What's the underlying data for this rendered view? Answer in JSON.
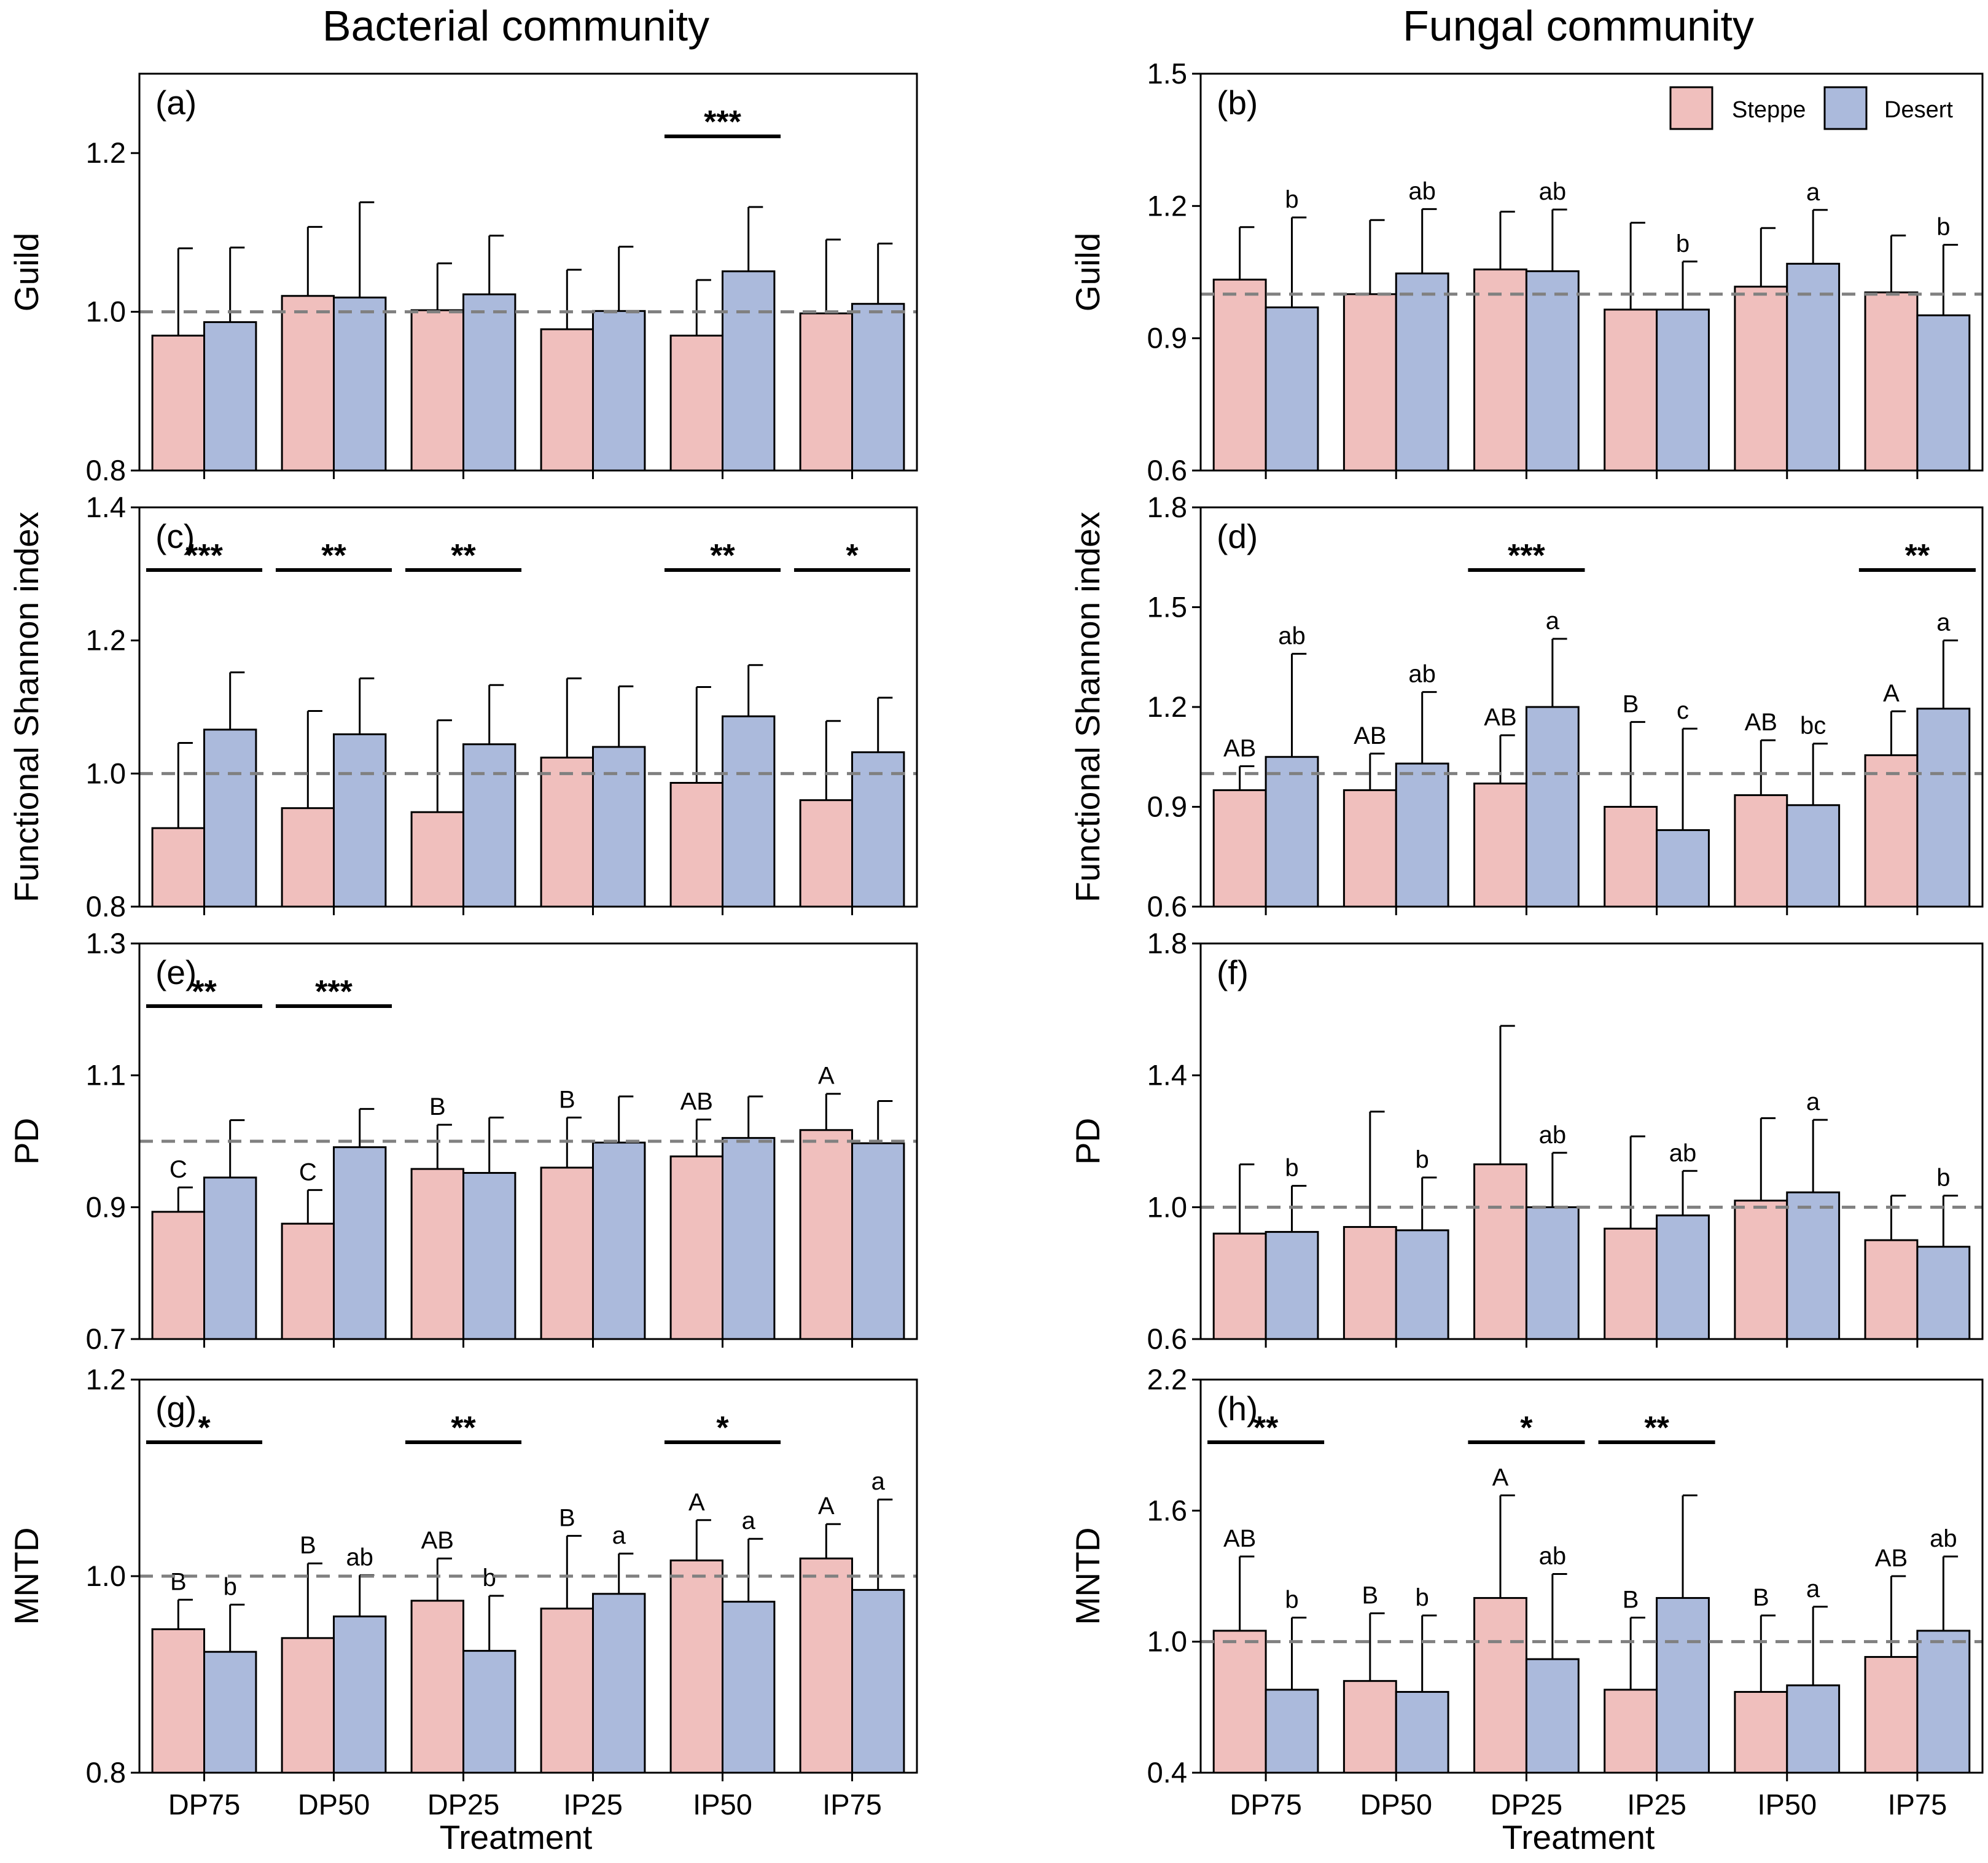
{
  "colors": {
    "steppe": "#f0bfbd",
    "desert": "#abbadc",
    "ref_line": "#808080"
  },
  "col_titles": {
    "left": "Bacterial community",
    "right": "Fungal community"
  },
  "legend": {
    "steppe": "Steppe",
    "desert": "Desert"
  },
  "x_title": "Treatment",
  "chart_data": [
    {
      "id": "a",
      "type": "bar",
      "label": "(a)",
      "ylabel": "Guild",
      "categories": [
        "DP75",
        "DP50",
        "DP25",
        "IP25",
        "IP50",
        "IP75"
      ],
      "ylim": [
        0.8,
        1.3
      ],
      "yticks": [
        0.8,
        1.0,
        1.2
      ],
      "ytick_labels": [
        "0.8",
        "1.0",
        "1.2"
      ],
      "series": [
        {
          "name": "Steppe",
          "values": [
            0.97,
            1.02,
            1.002,
            0.978,
            0.97,
            0.998
          ],
          "err": [
            1.08,
            1.107,
            1.061,
            1.053,
            1.04,
            1.091
          ],
          "letters": [
            "",
            "",
            "",
            "",
            "",
            ""
          ]
        },
        {
          "name": "Desert",
          "values": [
            0.987,
            1.018,
            1.022,
            1.001,
            1.051,
            1.01
          ],
          "err": [
            1.081,
            1.138,
            1.096,
            1.082,
            1.132,
            1.086
          ],
          "letters": [
            "",
            "",
            "",
            "",
            "",
            ""
          ]
        }
      ],
      "sig": [
        {
          "index": 4,
          "label": "***"
        }
      ]
    },
    {
      "id": "b",
      "type": "bar",
      "label": "(b)",
      "ylabel": "Guild",
      "categories": [
        "DP75",
        "DP50",
        "DP25",
        "IP25",
        "IP50",
        "IP75"
      ],
      "ylim": [
        0.6,
        1.5
      ],
      "yticks": [
        0.6,
        0.9,
        1.2,
        1.5
      ],
      "ytick_labels": [
        "0.6",
        "0.9",
        "1.2",
        "1.5"
      ],
      "series": [
        {
          "name": "Steppe",
          "values": [
            1.033,
            1.0,
            1.056,
            0.965,
            1.017,
            1.004
          ],
          "err": [
            1.152,
            1.168,
            1.187,
            1.162,
            1.15,
            1.133
          ],
          "letters": [
            "",
            "",
            "",
            "",
            "",
            ""
          ]
        },
        {
          "name": "Desert",
          "values": [
            0.97,
            1.047,
            1.052,
            0.965,
            1.069,
            0.952
          ],
          "err": [
            1.174,
            1.193,
            1.192,
            1.074,
            1.191,
            1.112
          ],
          "letters": [
            "b",
            "ab",
            "ab",
            "b",
            "a",
            "b"
          ]
        }
      ],
      "sig": [],
      "show_legend": true
    },
    {
      "id": "c",
      "type": "bar",
      "label": "(c)",
      "ylabel": "Functional Shannon index",
      "categories": [
        "DP75",
        "DP50",
        "DP25",
        "IP25",
        "IP50",
        "IP75"
      ],
      "ylim": [
        0.8,
        1.4
      ],
      "yticks": [
        0.8,
        1.0,
        1.2,
        1.4
      ],
      "ytick_labels": [
        "0.8",
        "1.0",
        "1.2",
        "1.4"
      ],
      "series": [
        {
          "name": "Steppe",
          "values": [
            0.918,
            0.948,
            0.942,
            1.024,
            0.986,
            0.96
          ],
          "err": [
            1.046,
            1.094,
            1.08,
            1.143,
            1.13,
            1.079
          ],
          "letters": [
            "",
            "",
            "",
            "",
            "",
            ""
          ]
        },
        {
          "name": "Desert",
          "values": [
            1.066,
            1.059,
            1.044,
            1.04,
            1.086,
            1.032
          ],
          "err": [
            1.152,
            1.143,
            1.133,
            1.131,
            1.163,
            1.114
          ],
          "letters": [
            "",
            "",
            "",
            "",
            "",
            ""
          ]
        }
      ],
      "sig": [
        {
          "index": 0,
          "label": "***"
        },
        {
          "index": 1,
          "label": "**"
        },
        {
          "index": 2,
          "label": "**"
        },
        {
          "index": 4,
          "label": "**"
        },
        {
          "index": 5,
          "label": "*"
        }
      ]
    },
    {
      "id": "d",
      "type": "bar",
      "label": "(d)",
      "ylabel": "Functional Shannon index",
      "categories": [
        "DP75",
        "DP50",
        "DP25",
        "IP25",
        "IP50",
        "IP75"
      ],
      "ylim": [
        0.6,
        1.8
      ],
      "yticks": [
        0.6,
        0.9,
        1.2,
        1.5,
        1.8
      ],
      "ytick_labels": [
        "0.6",
        "0.9",
        "1.2",
        "1.5",
        "1.8"
      ],
      "series": [
        {
          "name": "Steppe",
          "values": [
            0.95,
            0.95,
            0.97,
            0.9,
            0.935,
            1.055
          ],
          "err": [
            1.022,
            1.06,
            1.115,
            1.155,
            1.1,
            1.187
          ],
          "letters": [
            "AB",
            "AB",
            "AB",
            "B",
            "AB",
            "A"
          ]
        },
        {
          "name": "Desert",
          "values": [
            1.05,
            1.03,
            1.2,
            0.83,
            0.905,
            1.195
          ],
          "err": [
            1.36,
            1.245,
            1.405,
            1.135,
            1.09,
            1.4
          ],
          "letters": [
            "ab",
            "ab",
            "a",
            "c",
            "bc",
            "a"
          ]
        }
      ],
      "sig": [
        {
          "index": 2,
          "label": "***"
        },
        {
          "index": 5,
          "label": "**"
        }
      ]
    },
    {
      "id": "e",
      "type": "bar",
      "label": "(e)",
      "ylabel": "PD",
      "categories": [
        "DP75",
        "DP50",
        "DP25",
        "IP25",
        "IP50",
        "IP75"
      ],
      "ylim": [
        0.7,
        1.3
      ],
      "yticks": [
        0.7,
        0.9,
        1.1,
        1.3
      ],
      "ytick_labels": [
        "0.7",
        "0.9",
        "1.1",
        "1.3"
      ],
      "series": [
        {
          "name": "Steppe",
          "values": [
            0.893,
            0.875,
            0.958,
            0.96,
            0.977,
            1.017
          ],
          "err": [
            0.93,
            0.926,
            1.025,
            1.036,
            1.033,
            1.072
          ],
          "letters": [
            "C",
            "C",
            "B",
            "B",
            "AB",
            "A"
          ]
        },
        {
          "name": "Desert",
          "values": [
            0.945,
            0.991,
            0.952,
            0.998,
            1.005,
            0.997
          ],
          "err": [
            1.032,
            1.049,
            1.036,
            1.068,
            1.068,
            1.061
          ],
          "letters": [
            "",
            "",
            "",
            "",
            "",
            ""
          ]
        }
      ],
      "sig": [
        {
          "index": 0,
          "label": "**"
        },
        {
          "index": 1,
          "label": "***"
        }
      ]
    },
    {
      "id": "f",
      "type": "bar",
      "label": "(f)",
      "ylabel": "PD",
      "categories": [
        "DP75",
        "DP50",
        "DP25",
        "IP25",
        "IP50",
        "IP75"
      ],
      "ylim": [
        0.6,
        1.8
      ],
      "yticks": [
        0.6,
        1.0,
        1.4,
        1.8
      ],
      "ytick_labels": [
        "0.6",
        "1.0",
        "1.4",
        "1.8"
      ],
      "series": [
        {
          "name": "Steppe",
          "values": [
            0.92,
            0.94,
            1.13,
            0.935,
            1.02,
            0.9
          ],
          "err": [
            1.13,
            1.29,
            1.55,
            1.215,
            1.27,
            1.035
          ],
          "letters": [
            "",
            "",
            "",
            "",
            "",
            ""
          ]
        },
        {
          "name": "Desert",
          "values": [
            0.925,
            0.93,
            1.0,
            0.975,
            1.045,
            0.88
          ],
          "err": [
            1.065,
            1.09,
            1.165,
            1.11,
            1.265,
            1.035
          ],
          "letters": [
            "b",
            "b",
            "ab",
            "ab",
            "a",
            "b"
          ]
        }
      ],
      "sig": []
    },
    {
      "id": "g",
      "type": "bar",
      "label": "(g)",
      "ylabel": "MNTD",
      "categories": [
        "DP75",
        "DP50",
        "DP25",
        "IP25",
        "IP50",
        "IP75"
      ],
      "ylim": [
        0.8,
        1.2
      ],
      "yticks": [
        0.8,
        1.0,
        1.2
      ],
      "ytick_labels": [
        "0.8",
        "1.0",
        "1.2"
      ],
      "series": [
        {
          "name": "Steppe",
          "values": [
            0.946,
            0.937,
            0.975,
            0.967,
            1.016,
            1.018
          ],
          "err": [
            0.976,
            1.013,
            1.018,
            1.041,
            1.057,
            1.053
          ],
          "letters": [
            "B",
            "B",
            "AB",
            "B",
            "A",
            "A"
          ]
        },
        {
          "name": "Desert",
          "values": [
            0.923,
            0.959,
            0.924,
            0.982,
            0.974,
            0.986
          ],
          "err": [
            0.971,
            1.001,
            0.98,
            1.023,
            1.038,
            1.078
          ],
          "letters": [
            "b",
            "ab",
            "b",
            "a",
            "a",
            "a"
          ]
        }
      ],
      "sig": [
        {
          "index": 0,
          "label": "*"
        },
        {
          "index": 2,
          "label": "**"
        },
        {
          "index": 4,
          "label": "*"
        }
      ]
    },
    {
      "id": "h",
      "type": "bar",
      "label": "(h)",
      "ylabel": "MNTD",
      "categories": [
        "DP75",
        "DP50",
        "DP25",
        "IP25",
        "IP50",
        "IP75"
      ],
      "ylim": [
        0.4,
        2.2
      ],
      "yticks": [
        0.4,
        1.0,
        1.6,
        2.2
      ],
      "ytick_labels": [
        "0.4",
        "1.0",
        "1.6",
        "2.2"
      ],
      "series": [
        {
          "name": "Steppe",
          "values": [
            1.05,
            0.82,
            1.2,
            0.78,
            0.77,
            0.93
          ],
          "err": [
            1.39,
            1.13,
            1.67,
            1.11,
            1.12,
            1.3
          ],
          "letters": [
            "AB",
            "B",
            "A",
            "B",
            "B",
            "AB"
          ]
        },
        {
          "name": "Desert",
          "values": [
            0.78,
            0.77,
            0.92,
            1.2,
            0.8,
            1.05
          ],
          "err": [
            1.11,
            1.12,
            1.31,
            1.67,
            1.16,
            1.39
          ],
          "letters": [
            "b",
            "b",
            "ab",
            "",
            "a",
            "ab"
          ]
        }
      ],
      "sig": [
        {
          "index": 0,
          "label": "**"
        },
        {
          "index": 2,
          "label": "*"
        },
        {
          "index": 3,
          "label": "**"
        }
      ]
    }
  ]
}
